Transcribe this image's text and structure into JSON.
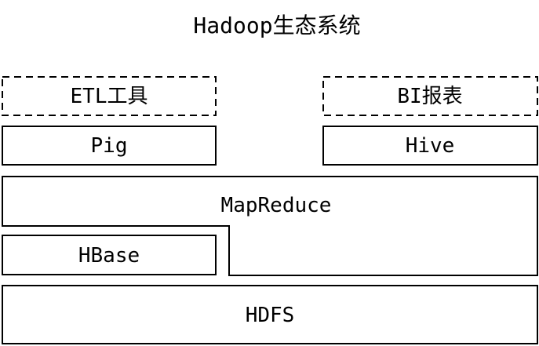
{
  "title": "Hadoop生态系统",
  "blocks": {
    "etl": "ETL工具",
    "bi": "BI报表",
    "pig": "Pig",
    "hive": "Hive",
    "mapreduce": "MapReduce",
    "hbase": "HBase",
    "hdfs": "HDFS"
  }
}
